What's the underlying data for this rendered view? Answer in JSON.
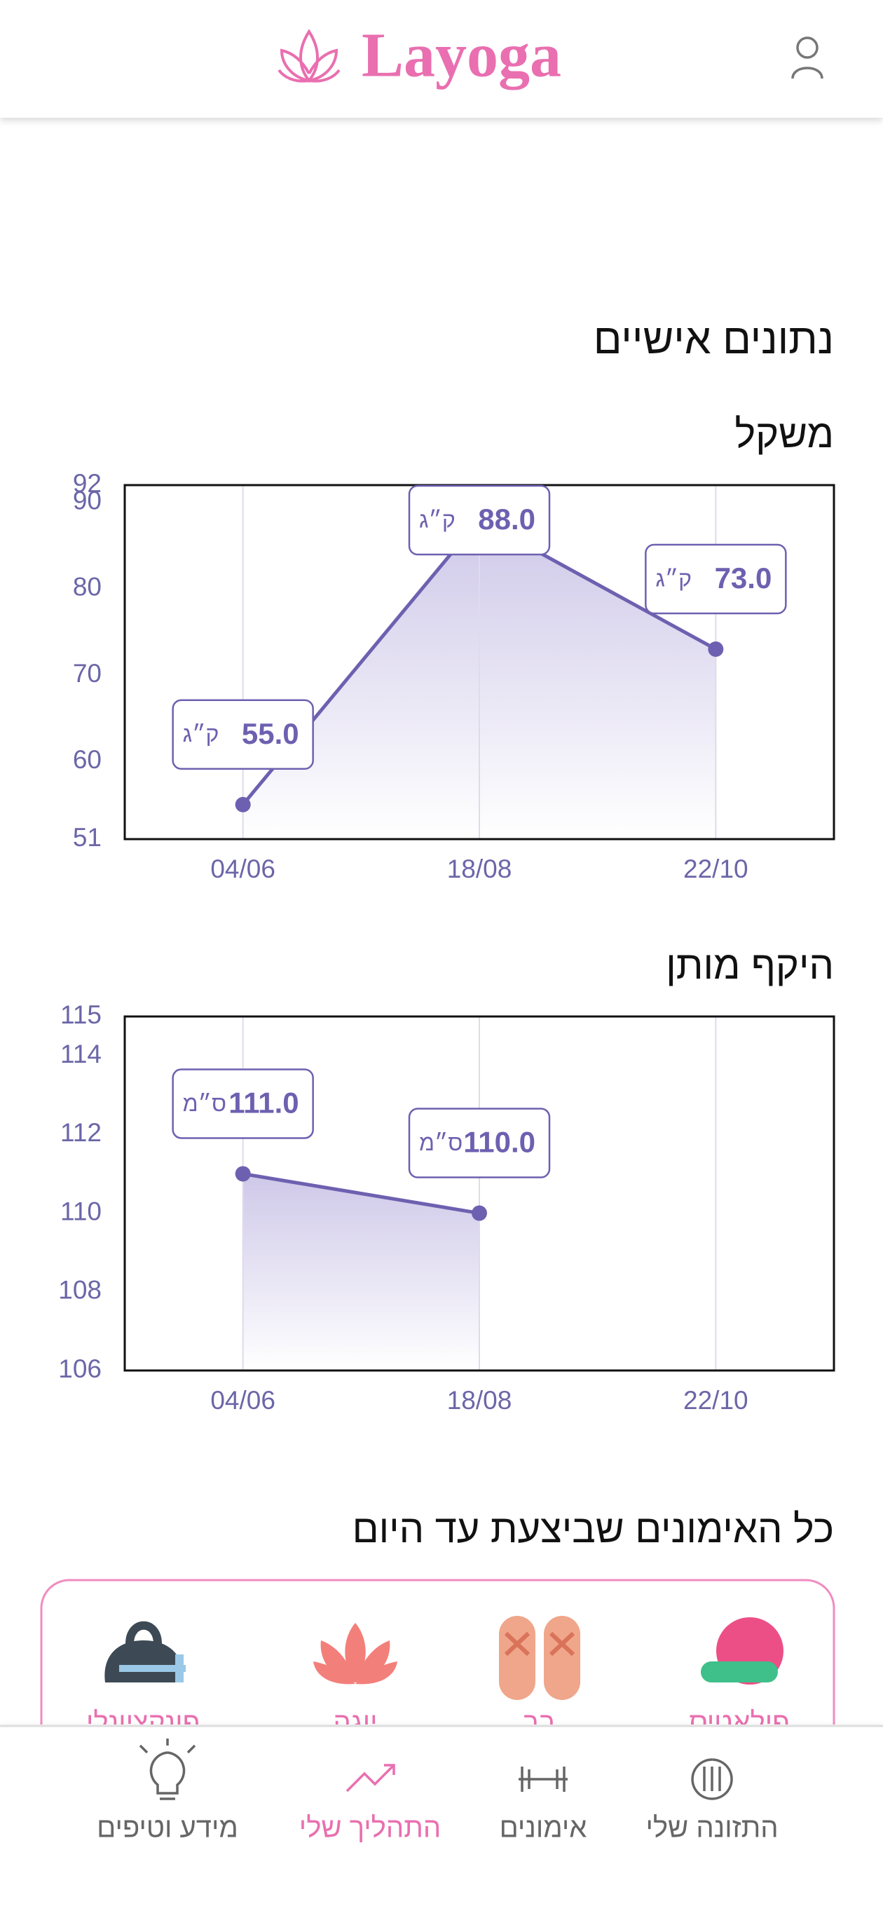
{
  "header": {
    "brand": "Layoga"
  },
  "section_title": "נתונים אישיים",
  "chart_data": [
    {
      "type": "line",
      "title": "משקל",
      "unit": "ק״ג",
      "categories": [
        "04/06",
        "18/08",
        "22/10"
      ],
      "values": [
        55,
        88,
        73
      ],
      "value_labels": [
        "55.0",
        "88.0",
        "73.0"
      ],
      "ylim": [
        51,
        92
      ],
      "yticks": [
        51,
        60,
        70,
        80,
        90,
        92
      ],
      "color": "#6e60b0"
    },
    {
      "type": "line",
      "title": "היקף מותן",
      "unit": "ס״מ",
      "categories": [
        "04/06",
        "18/08",
        "22/10"
      ],
      "values": [
        111,
        110,
        null
      ],
      "value_labels": [
        "111.0",
        "110.0",
        null
      ],
      "ylim": [
        106,
        115
      ],
      "yticks": [
        106,
        108,
        110,
        112,
        114,
        115
      ],
      "color": "#6e60b0"
    }
  ],
  "workouts": {
    "title": "כל האימונים שביצעת עד היום",
    "items": [
      "פילאטיס",
      "בר",
      "יוגה",
      "פונקציונלי"
    ]
  },
  "nav": {
    "items": [
      "התזונה שלי",
      "אימונים",
      "התהליך שלי",
      "מידע וטיפים"
    ],
    "active": 2
  }
}
